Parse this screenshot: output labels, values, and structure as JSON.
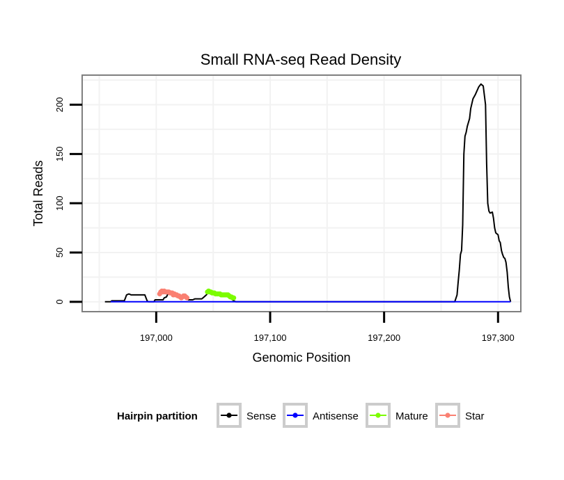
{
  "chart_data": {
    "type": "line",
    "title": "Small RNA-seq Read Density",
    "xlabel": "Genomic Position",
    "ylabel": "Total Reads",
    "xlim": [
      196935,
      197320
    ],
    "ylim": [
      -10,
      230
    ],
    "x_ticks": [
      197000,
      197100,
      197200,
      197300
    ],
    "x_tick_labels": [
      "197,000",
      "197,100",
      "197,200",
      "197,300"
    ],
    "y_ticks": [
      0,
      50,
      100,
      150,
      200
    ],
    "y_tick_labels": [
      "0",
      "50",
      "100",
      "150",
      "200"
    ],
    "grid": true,
    "legend": {
      "title": "Hairpin partition",
      "position": "bottom"
    },
    "series": [
      {
        "name": "Sense",
        "color": "#000000",
        "points": [
          [
            196955,
            0
          ],
          [
            196960,
            0
          ],
          [
            196961,
            1
          ],
          [
            196972,
            1
          ],
          [
            196973,
            4
          ],
          [
            196974,
            7
          ],
          [
            196976,
            8
          ],
          [
            196978,
            7
          ],
          [
            196990,
            7
          ],
          [
            196992,
            1
          ],
          [
            196993,
            0
          ],
          [
            196998,
            0
          ],
          [
            196999,
            2
          ],
          [
            197006,
            2
          ],
          [
            197007,
            4
          ],
          [
            197009,
            5
          ],
          [
            197011,
            10
          ],
          [
            197024,
            5
          ],
          [
            197026,
            3
          ],
          [
            197028,
            2
          ],
          [
            197032,
            2
          ],
          [
            197034,
            3
          ],
          [
            197040,
            3
          ],
          [
            197042,
            5
          ],
          [
            197044,
            7
          ],
          [
            197046,
            10
          ],
          [
            197050,
            8
          ],
          [
            197054,
            7
          ],
          [
            197060,
            6
          ],
          [
            197064,
            5
          ],
          [
            197066,
            3
          ],
          [
            197068,
            1
          ],
          [
            197070,
            0
          ],
          [
            197125,
            0
          ],
          [
            197200,
            0
          ],
          [
            197262,
            0
          ],
          [
            197264,
            7
          ],
          [
            197265,
            20
          ],
          [
            197266,
            32
          ],
          [
            197267,
            48
          ],
          [
            197268,
            52
          ],
          [
            197269,
            78
          ],
          [
            197270,
            150
          ],
          [
            197271,
            168
          ],
          [
            197272,
            172
          ],
          [
            197273,
            178
          ],
          [
            197275,
            186
          ],
          [
            197276,
            196
          ],
          [
            197278,
            206
          ],
          [
            197280,
            210
          ],
          [
            197283,
            218
          ],
          [
            197285,
            221
          ],
          [
            197287,
            219
          ],
          [
            197289,
            200
          ],
          [
            197290,
            140
          ],
          [
            197291,
            100
          ],
          [
            197292,
            92
          ],
          [
            197293,
            90
          ],
          [
            197295,
            91
          ],
          [
            197296,
            85
          ],
          [
            197297,
            75
          ],
          [
            197298,
            70
          ],
          [
            197300,
            68
          ],
          [
            197301,
            62
          ],
          [
            197302,
            60
          ],
          [
            197303,
            52
          ],
          [
            197304,
            48
          ],
          [
            197305,
            45
          ],
          [
            197306,
            44
          ],
          [
            197307,
            40
          ],
          [
            197308,
            30
          ],
          [
            197309,
            15
          ],
          [
            197310,
            5
          ],
          [
            197311,
            0
          ]
        ]
      },
      {
        "name": "Antisense",
        "color": "#0000ff",
        "points": [
          [
            196960,
            0
          ],
          [
            197311,
            0
          ]
        ]
      },
      {
        "name": "Mature",
        "color": "#7cfc00",
        "points": [
          [
            197045,
            10
          ],
          [
            197046,
            11
          ],
          [
            197047,
            10
          ],
          [
            197048,
            10
          ],
          [
            197049,
            9
          ],
          [
            197050,
            9
          ],
          [
            197051,
            9
          ],
          [
            197052,
            8
          ],
          [
            197053,
            8
          ],
          [
            197054,
            8
          ],
          [
            197055,
            8
          ],
          [
            197056,
            8
          ],
          [
            197057,
            7
          ],
          [
            197058,
            7
          ],
          [
            197059,
            7
          ],
          [
            197060,
            7
          ],
          [
            197061,
            7
          ],
          [
            197062,
            7
          ],
          [
            197063,
            7
          ],
          [
            197064,
            6
          ],
          [
            197065,
            5
          ],
          [
            197066,
            5
          ],
          [
            197067,
            4
          ],
          [
            197068,
            4
          ]
        ]
      },
      {
        "name": "Star",
        "color": "#fa8072",
        "points": [
          [
            197003,
            8
          ],
          [
            197004,
            10
          ],
          [
            197005,
            11
          ],
          [
            197006,
            10
          ],
          [
            197007,
            11
          ],
          [
            197008,
            10
          ],
          [
            197009,
            10
          ],
          [
            197010,
            10
          ],
          [
            197011,
            10
          ],
          [
            197012,
            9
          ],
          [
            197013,
            9
          ],
          [
            197014,
            9
          ],
          [
            197015,
            7
          ],
          [
            197016,
            8
          ],
          [
            197017,
            7
          ],
          [
            197018,
            7
          ],
          [
            197019,
            6
          ],
          [
            197020,
            6
          ],
          [
            197021,
            5
          ],
          [
            197022,
            4
          ],
          [
            197023,
            5
          ],
          [
            197024,
            6
          ],
          [
            197025,
            6
          ],
          [
            197026,
            5
          ],
          [
            197027,
            4
          ]
        ]
      }
    ]
  }
}
